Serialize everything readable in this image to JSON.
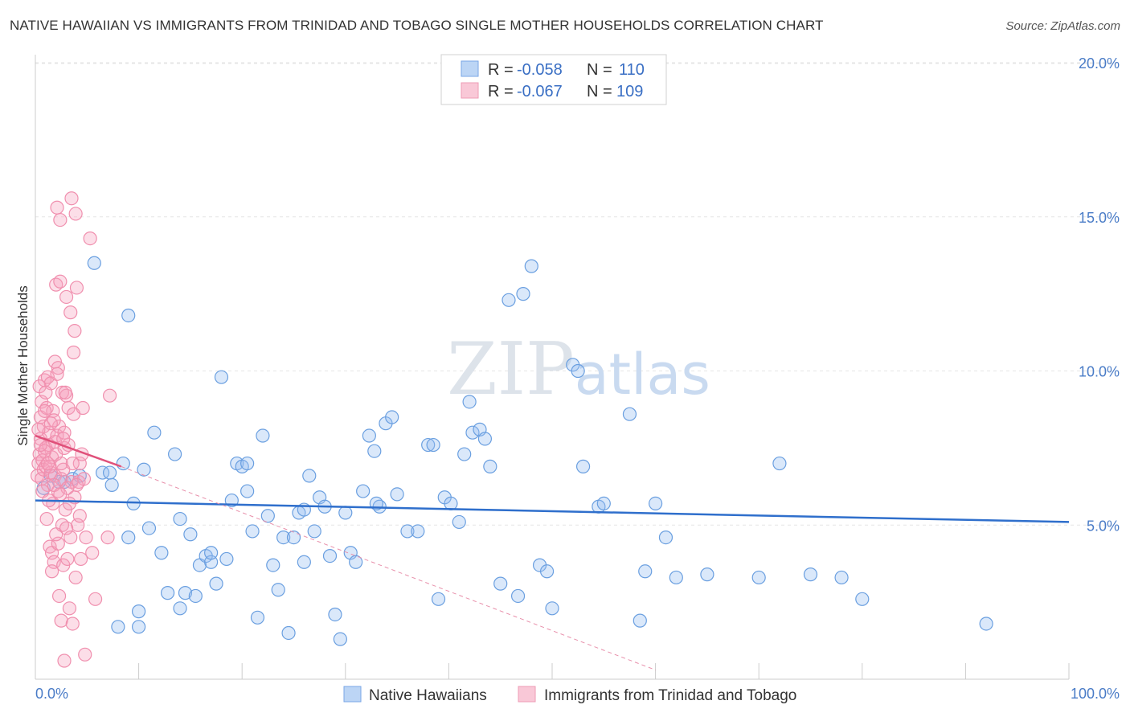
{
  "title": "NATIVE HAWAIIAN VS IMMIGRANTS FROM TRINIDAD AND TOBAGO SINGLE MOTHER HOUSEHOLDS CORRELATION CHART",
  "source": "Source: ZipAtlas.com",
  "chart_data": {
    "type": "scatter",
    "ylabel": "Single Mother Households",
    "xlim": [
      0,
      100
    ],
    "ylim": [
      0,
      20
    ],
    "x_tick_labels": [
      "0.0%",
      "100.0%"
    ],
    "y_ticks": [
      5,
      10,
      15,
      20
    ],
    "y_tick_labels": [
      "5.0%",
      "10.0%",
      "15.0%",
      "20.0%"
    ],
    "watermark": "ZIPatlas",
    "legend": [
      {
        "r_label": "R =",
        "r_value": "-0.058",
        "n_label": "N =",
        "n_value": "110"
      },
      {
        "r_label": "R =",
        "r_value": "-0.067",
        "n_label": "N =",
        "n_value": "109"
      }
    ],
    "series": [
      {
        "name": "Native Hawaiians",
        "color": "#6a9fe0",
        "line_color": "#2f6fcc",
        "trend": {
          "x0": 0,
          "y0": 5.8,
          "x1": 100,
          "y1": 5.1
        },
        "points": [
          [
            0.8,
            6.2
          ],
          [
            1.5,
            6.6
          ],
          [
            2.3,
            6.4
          ],
          [
            2.8,
            6.4
          ],
          [
            3.6,
            6.5
          ],
          [
            4.3,
            6.6
          ],
          [
            5.7,
            13.5
          ],
          [
            6.5,
            6.7
          ],
          [
            7.4,
            6.3
          ],
          [
            8.0,
            1.7
          ],
          [
            8.5,
            7.0
          ],
          [
            9.0,
            4.6
          ],
          [
            9.0,
            11.8
          ],
          [
            9.5,
            5.7
          ],
          [
            10.0,
            2.2
          ],
          [
            10.5,
            6.8
          ],
          [
            11.0,
            4.9
          ],
          [
            11.5,
            8.0
          ],
          [
            12.2,
            4.1
          ],
          [
            12.8,
            2.8
          ],
          [
            13.5,
            7.3
          ],
          [
            14.0,
            5.2
          ],
          [
            14.5,
            2.8
          ],
          [
            15.0,
            4.7
          ],
          [
            15.5,
            2.7
          ],
          [
            15.9,
            3.7
          ],
          [
            16.5,
            4.0
          ],
          [
            17.0,
            3.8
          ],
          [
            17.5,
            3.1
          ],
          [
            18.0,
            9.8
          ],
          [
            18.5,
            3.9
          ],
          [
            19.0,
            5.8
          ],
          [
            19.5,
            7.0
          ],
          [
            20.0,
            6.9
          ],
          [
            20.5,
            6.1
          ],
          [
            21.0,
            4.8
          ],
          [
            21.5,
            2.0
          ],
          [
            22.0,
            7.9
          ],
          [
            22.5,
            5.3
          ],
          [
            23.0,
            3.7
          ],
          [
            23.5,
            2.9
          ],
          [
            24.0,
            4.6
          ],
          [
            24.5,
            1.5
          ],
          [
            25.0,
            4.6
          ],
          [
            25.5,
            5.4
          ],
          [
            26.0,
            3.8
          ],
          [
            26.5,
            6.6
          ],
          [
            27.0,
            4.8
          ],
          [
            27.5,
            5.9
          ],
          [
            28.0,
            5.6
          ],
          [
            28.5,
            4.0
          ],
          [
            29.0,
            2.1
          ],
          [
            29.5,
            1.3
          ],
          [
            30.0,
            5.4
          ],
          [
            30.5,
            4.1
          ],
          [
            31.0,
            3.8
          ],
          [
            31.7,
            6.1
          ],
          [
            32.3,
            7.9
          ],
          [
            32.8,
            7.4
          ],
          [
            33.3,
            5.6
          ],
          [
            33.9,
            8.3
          ],
          [
            34.5,
            8.5
          ],
          [
            35.0,
            6.0
          ],
          [
            36.0,
            4.8
          ],
          [
            37.0,
            4.8
          ],
          [
            38.0,
            7.6
          ],
          [
            38.5,
            7.6
          ],
          [
            39.0,
            2.6
          ],
          [
            39.6,
            5.9
          ],
          [
            40.2,
            5.7
          ],
          [
            41.0,
            5.1
          ],
          [
            41.5,
            7.3
          ],
          [
            42.0,
            9.0
          ],
          [
            42.3,
            8.0
          ],
          [
            43.0,
            8.1
          ],
          [
            43.5,
            7.8
          ],
          [
            44.0,
            6.9
          ],
          [
            45.0,
            3.1
          ],
          [
            45.8,
            12.3
          ],
          [
            46.7,
            2.7
          ],
          [
            47.2,
            12.5
          ],
          [
            48.0,
            13.4
          ],
          [
            48.8,
            3.7
          ],
          [
            49.5,
            3.5
          ],
          [
            50.0,
            2.3
          ],
          [
            52.0,
            10.2
          ],
          [
            52.5,
            10.0
          ],
          [
            53.0,
            6.9
          ],
          [
            54.5,
            5.6
          ],
          [
            55.0,
            5.7
          ],
          [
            57.5,
            8.6
          ],
          [
            58.5,
            1.9
          ],
          [
            59.0,
            3.5
          ],
          [
            60.0,
            5.7
          ],
          [
            61.0,
            4.6
          ],
          [
            62.0,
            3.3
          ],
          [
            65.0,
            3.4
          ],
          [
            70.0,
            3.3
          ],
          [
            72.0,
            7.0
          ],
          [
            75.0,
            3.4
          ],
          [
            78.0,
            3.3
          ],
          [
            80.0,
            2.6
          ],
          [
            92.0,
            1.8
          ],
          [
            33.0,
            5.7
          ],
          [
            26.0,
            5.5
          ],
          [
            20.5,
            7.0
          ],
          [
            17.0,
            4.1
          ],
          [
            14.0,
            2.3
          ],
          [
            10.0,
            1.7
          ],
          [
            7.2,
            6.7
          ]
        ]
      },
      {
        "name": "Immigrants from Trinidad and Tobago",
        "color": "#f08fae",
        "line_color": "#e0507a",
        "trend": {
          "x0": 0,
          "y0": 7.9,
          "x1": 8.3,
          "y1": 6.9
        },
        "trend_ext": {
          "x0": 8.3,
          "y0": 6.9,
          "x1": 60,
          "y1": 0.3
        },
        "points": [
          [
            0.2,
            6.6
          ],
          [
            0.3,
            7.0
          ],
          [
            0.4,
            7.3
          ],
          [
            0.5,
            7.8
          ],
          [
            0.5,
            8.5
          ],
          [
            0.6,
            6.5
          ],
          [
            0.6,
            9.0
          ],
          [
            0.7,
            7.1
          ],
          [
            0.8,
            6.8
          ],
          [
            0.8,
            8.2
          ],
          [
            0.9,
            9.7
          ],
          [
            1.0,
            7.5
          ],
          [
            1.0,
            6.9
          ],
          [
            1.1,
            8.8
          ],
          [
            1.2,
            9.8
          ],
          [
            1.2,
            6.3
          ],
          [
            1.3,
            7.6
          ],
          [
            1.3,
            8.0
          ],
          [
            1.4,
            4.3
          ],
          [
            1.5,
            6.7
          ],
          [
            1.5,
            9.6
          ],
          [
            1.6,
            4.1
          ],
          [
            1.6,
            7.2
          ],
          [
            1.7,
            8.7
          ],
          [
            1.7,
            5.7
          ],
          [
            1.8,
            3.8
          ],
          [
            1.9,
            6.6
          ],
          [
            1.9,
            10.3
          ],
          [
            2.0,
            7.3
          ],
          [
            2.0,
            12.8
          ],
          [
            2.1,
            7.9
          ],
          [
            2.1,
            15.3
          ],
          [
            2.2,
            4.4
          ],
          [
            2.2,
            6.1
          ],
          [
            2.3,
            2.7
          ],
          [
            2.3,
            8.2
          ],
          [
            2.4,
            14.9
          ],
          [
            2.4,
            12.9
          ],
          [
            2.5,
            6.5
          ],
          [
            2.5,
            1.9
          ],
          [
            2.6,
            9.3
          ],
          [
            2.7,
            3.7
          ],
          [
            2.7,
            6.8
          ],
          [
            2.8,
            7.5
          ],
          [
            2.8,
            0.6
          ],
          [
            2.9,
            5.5
          ],
          [
            3.0,
            9.2
          ],
          [
            3.0,
            12.4
          ],
          [
            3.1,
            3.9
          ],
          [
            3.2,
            8.8
          ],
          [
            3.2,
            7.6
          ],
          [
            3.3,
            2.3
          ],
          [
            3.4,
            11.9
          ],
          [
            3.4,
            4.6
          ],
          [
            3.5,
            6.4
          ],
          [
            3.5,
            15.6
          ],
          [
            3.6,
            1.8
          ],
          [
            3.7,
            10.6
          ],
          [
            3.7,
            8.6
          ],
          [
            3.8,
            5.9
          ],
          [
            3.8,
            11.3
          ],
          [
            3.9,
            15.1
          ],
          [
            3.9,
            3.3
          ],
          [
            4.0,
            12.7
          ],
          [
            4.1,
            5.0
          ],
          [
            4.2,
            6.4
          ],
          [
            4.3,
            7.0
          ],
          [
            4.4,
            3.9
          ],
          [
            4.5,
            7.3
          ],
          [
            4.6,
            8.8
          ],
          [
            4.7,
            6.5
          ],
          [
            4.8,
            0.8
          ],
          [
            4.9,
            4.6
          ],
          [
            5.3,
            14.3
          ],
          [
            5.5,
            4.1
          ],
          [
            5.8,
            2.6
          ],
          [
            7.0,
            4.6
          ],
          [
            7.2,
            9.2
          ],
          [
            0.4,
            9.5
          ],
          [
            0.9,
            7.4
          ],
          [
            1.1,
            5.2
          ],
          [
            1.4,
            6.9
          ],
          [
            1.8,
            8.4
          ],
          [
            2.0,
            4.7
          ],
          [
            2.5,
            7.0
          ],
          [
            2.9,
            9.3
          ],
          [
            3.3,
            5.7
          ],
          [
            3.6,
            7.0
          ],
          [
            4.0,
            6.3
          ],
          [
            4.3,
            5.3
          ],
          [
            0.3,
            8.1
          ],
          [
            0.7,
            6.1
          ],
          [
            1.0,
            9.3
          ],
          [
            1.3,
            5.8
          ],
          [
            1.6,
            3.5
          ],
          [
            1.9,
            7.7
          ],
          [
            2.2,
            10.1
          ],
          [
            2.6,
            5.0
          ],
          [
            2.8,
            8.0
          ],
          [
            3.1,
            6.2
          ],
          [
            0.5,
            7.6
          ],
          [
            0.9,
            8.7
          ],
          [
            1.2,
            7.0
          ],
          [
            1.5,
            8.3
          ],
          [
            1.8,
            6.3
          ],
          [
            2.1,
            9.9
          ],
          [
            2.4,
            6.0
          ],
          [
            2.7,
            7.8
          ],
          [
            3.0,
            4.9
          ]
        ]
      }
    ]
  }
}
